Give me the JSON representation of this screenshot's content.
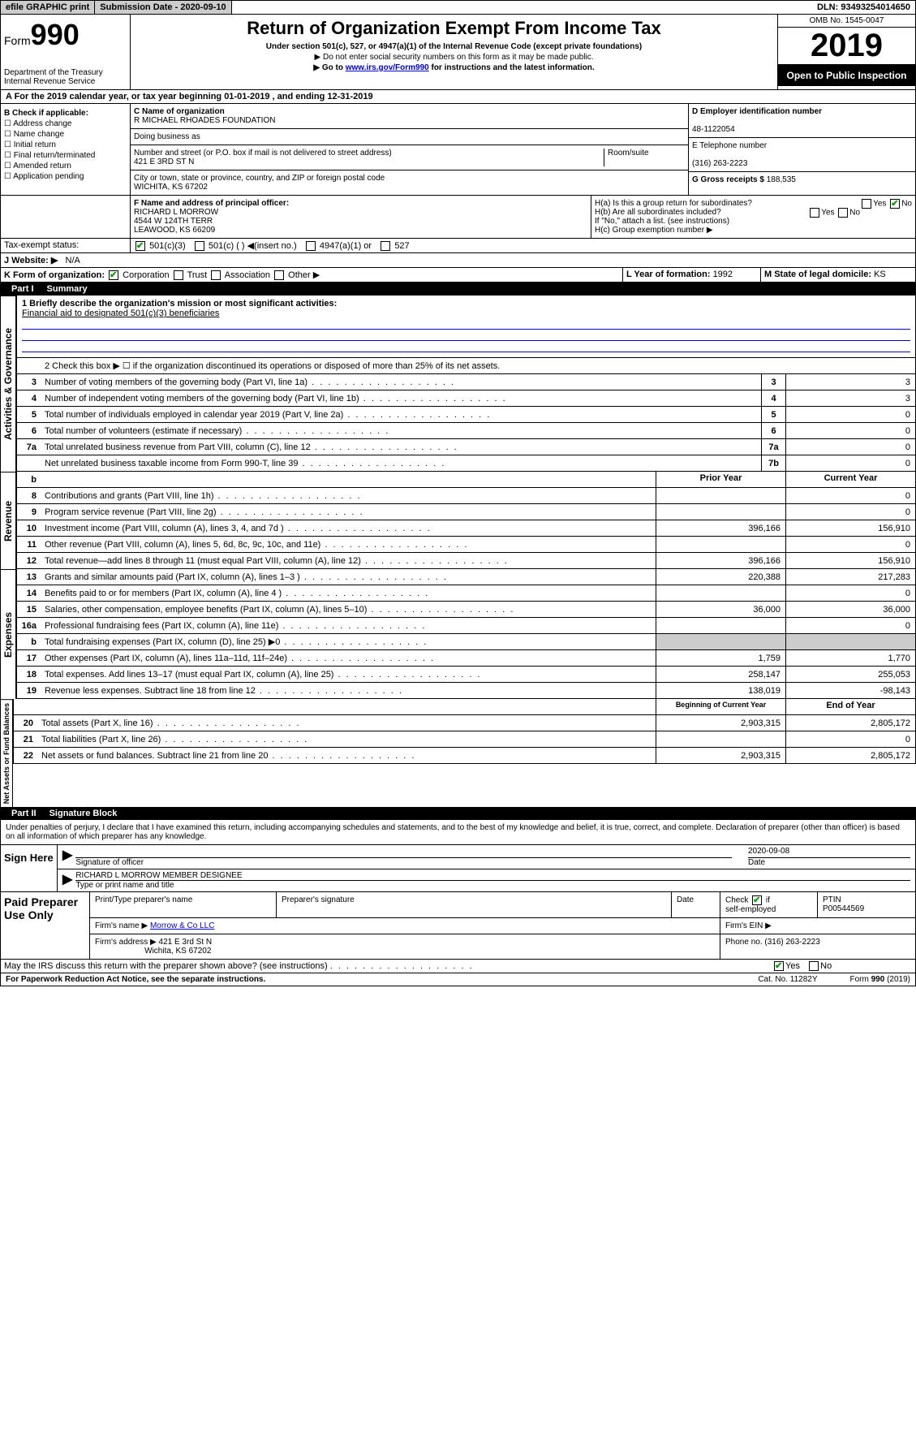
{
  "topbar": {
    "efile": "efile GRAPHIC print",
    "subdate_label": "Submission Date - ",
    "subdate": "2020-09-10",
    "dln_label": "DLN: ",
    "dln": "93493254014650"
  },
  "header": {
    "form_label": "Form",
    "form_num": "990",
    "dept": "Department of the Treasury",
    "irs": "Internal Revenue Service",
    "title": "Return of Organization Exempt From Income Tax",
    "subtitle": "Under section 501(c), 527, or 4947(a)(1) of the Internal Revenue Code (except private foundations)",
    "note1": "▶ Do not enter social security numbers on this form as it may be made public.",
    "note2_pre": "▶ Go to ",
    "note2_link": "www.irs.gov/Form990",
    "note2_post": " for instructions and the latest information.",
    "omb": "OMB No. 1545-0047",
    "year": "2019",
    "open": "Open to Public Inspection"
  },
  "section_a": "A For the 2019 calendar year, or tax year beginning 01-01-2019    , and ending 12-31-2019",
  "checkboxes": {
    "label": "B Check if applicable:",
    "addr": "☐ Address change",
    "name": "☐ Name change",
    "init": "☐ Initial return",
    "final": "☐ Final return/terminated",
    "amend": "☐ Amended return",
    "app": "☐ Application pending"
  },
  "entity": {
    "name_label": "C Name of organization",
    "name": "R MICHAEL RHOADES FOUNDATION",
    "dba_label": "Doing business as",
    "addr_label": "Number and street (or P.O. box if mail is not delivered to street address)",
    "room_label": "Room/suite",
    "addr": "421 E 3RD ST N",
    "city_label": "City or town, state or province, country, and ZIP or foreign postal code",
    "city": "WICHITA, KS  67202",
    "ein_label": "D Employer identification number",
    "ein": "48-1122054",
    "phone_label": "E Telephone number",
    "phone": "(316) 263-2223",
    "receipts_label": "G Gross receipts $ ",
    "receipts": "188,535"
  },
  "officer": {
    "label": "F  Name and address of principal officer:",
    "name": "RICHARD L MORROW",
    "addr1": "4544 W 124TH TERR",
    "addr2": "LEAWOOD, KS  66209",
    "h_a": "H(a)  Is this a group return for subordinates?",
    "h_b": "H(b)  Are all subordinates included?",
    "h_note": "If \"No,\" attach a list. (see instructions)",
    "h_c": "H(c)  Group exemption number ▶",
    "yes": "Yes",
    "no": "No"
  },
  "tax_status": {
    "label": "Tax-exempt status:",
    "c3": "501(c)(3)",
    "c": "501(c) (   ) ◀(insert no.)",
    "a1": "4947(a)(1) or",
    "527": "527"
  },
  "website": {
    "label": "J  Website: ▶",
    "val": "N/A"
  },
  "k_row": {
    "label": "K Form of organization:",
    "corp": "Corporation",
    "trust": "Trust",
    "assoc": "Association",
    "other": "Other ▶",
    "year_label": "L Year of formation: ",
    "year": "1992",
    "state_label": "M State of legal domicile: ",
    "state": "KS"
  },
  "part1": {
    "label": "Part I",
    "title": "Summary"
  },
  "summary": {
    "line1_label": "1  Briefly describe the organization's mission or most significant activities:",
    "line1_val": "Financial aid to designated 501(c)(3) beneficiaries",
    "line2": "2   Check this box ▶ ☐  if the organization discontinued its operations or disposed of more than 25% of its net assets.",
    "prior_year": "Prior Year",
    "current_year": "Current Year",
    "begin_year": "Beginning of Current Year",
    "end_year": "End of Year"
  },
  "governance": [
    {
      "n": "3",
      "d": "Number of voting members of the governing body (Part VI, line 1a)",
      "b": "3",
      "v": "3"
    },
    {
      "n": "4",
      "d": "Number of independent voting members of the governing body (Part VI, line 1b)",
      "b": "4",
      "v": "3"
    },
    {
      "n": "5",
      "d": "Total number of individuals employed in calendar year 2019 (Part V, line 2a)",
      "b": "5",
      "v": "0"
    },
    {
      "n": "6",
      "d": "Total number of volunteers (estimate if necessary)",
      "b": "6",
      "v": "0"
    },
    {
      "n": "7a",
      "d": "Total unrelated business revenue from Part VIII, column (C), line 12",
      "b": "7a",
      "v": "0"
    },
    {
      "n": "",
      "d": "Net unrelated business taxable income from Form 990-T, line 39",
      "b": "7b",
      "v": "0"
    }
  ],
  "revenue": [
    {
      "n": "8",
      "d": "Contributions and grants (Part VIII, line 1h)",
      "p": "",
      "c": "0"
    },
    {
      "n": "9",
      "d": "Program service revenue (Part VIII, line 2g)",
      "p": "",
      "c": "0"
    },
    {
      "n": "10",
      "d": "Investment income (Part VIII, column (A), lines 3, 4, and 7d )",
      "p": "396,166",
      "c": "156,910"
    },
    {
      "n": "11",
      "d": "Other revenue (Part VIII, column (A), lines 5, 6d, 8c, 9c, 10c, and 11e)",
      "p": "",
      "c": "0"
    },
    {
      "n": "12",
      "d": "Total revenue—add lines 8 through 11 (must equal Part VIII, column (A), line 12)",
      "p": "396,166",
      "c": "156,910"
    }
  ],
  "expenses": [
    {
      "n": "13",
      "d": "Grants and similar amounts paid (Part IX, column (A), lines 1–3 )",
      "p": "220,388",
      "c": "217,283"
    },
    {
      "n": "14",
      "d": "Benefits paid to or for members (Part IX, column (A), line 4 )",
      "p": "",
      "c": "0"
    },
    {
      "n": "15",
      "d": "Salaries, other compensation, employee benefits (Part IX, column (A), lines 5–10)",
      "p": "36,000",
      "c": "36,000"
    },
    {
      "n": "16a",
      "d": "Professional fundraising fees (Part IX, column (A), line 11e)",
      "p": "",
      "c": "0"
    },
    {
      "n": "b",
      "d": "Total fundraising expenses (Part IX, column (D), line 25) ▶0",
      "p": "grey",
      "c": "grey"
    },
    {
      "n": "17",
      "d": "Other expenses (Part IX, column (A), lines 11a–11d, 11f–24e)",
      "p": "1,759",
      "c": "1,770"
    },
    {
      "n": "18",
      "d": "Total expenses. Add lines 13–17 (must equal Part IX, column (A), line 25)",
      "p": "258,147",
      "c": "255,053"
    },
    {
      "n": "19",
      "d": "Revenue less expenses. Subtract line 18 from line 12",
      "p": "138,019",
      "c": "-98,143"
    }
  ],
  "netassets": [
    {
      "n": "20",
      "d": "Total assets (Part X, line 16)",
      "p": "2,903,315",
      "c": "2,805,172"
    },
    {
      "n": "21",
      "d": "Total liabilities (Part X, line 26)",
      "p": "",
      "c": "0"
    },
    {
      "n": "22",
      "d": "Net assets or fund balances. Subtract line 21 from line 20",
      "p": "2,903,315",
      "c": "2,805,172"
    }
  ],
  "vlabels": {
    "gov": "Activities & Governance",
    "rev": "Revenue",
    "exp": "Expenses",
    "net": "Net Assets or Fund Balances"
  },
  "part2": {
    "label": "Part II",
    "title": "Signature Block"
  },
  "perjury": "Under penalties of perjury, I declare that I have examined this return, including accompanying schedules and statements, and to the best of my knowledge and belief, it is true, correct, and complete. Declaration of preparer (other than officer) is based on all information of which preparer has any knowledge.",
  "sign": {
    "here": "Sign Here",
    "sig_label": "Signature of officer",
    "date": "2020-09-08",
    "date_label": "Date",
    "name": "RICHARD L MORROW  MEMBER DESIGNEE",
    "name_label": "Type or print name and title"
  },
  "paid": {
    "label": "Paid Preparer Use Only",
    "prep_name_label": "Print/Type preparer's name",
    "prep_sig_label": "Preparer's signature",
    "date_label": "Date",
    "check_label": "Check",
    "self_emp": "self-employed",
    "ptin_label": "PTIN",
    "ptin": "P00544569",
    "firm_name_label": "Firm's name     ▶",
    "firm_name": "Morrow & Co LLC",
    "firm_ein_label": "Firm's EIN ▶",
    "firm_addr_label": "Firm's address ▶",
    "firm_addr": "421 E 3rd St N",
    "firm_city": "Wichita, KS  67202",
    "phone_label": "Phone no. ",
    "phone": "(316) 263-2223"
  },
  "discuss": {
    "text": "May the IRS discuss this return with the preparer shown above? (see instructions)",
    "yes": "Yes",
    "no": "No"
  },
  "footer": {
    "left": "For Paperwork Reduction Act Notice, see the separate instructions.",
    "mid": "Cat. No. 11282Y",
    "right": "Form 990 (2019)"
  }
}
